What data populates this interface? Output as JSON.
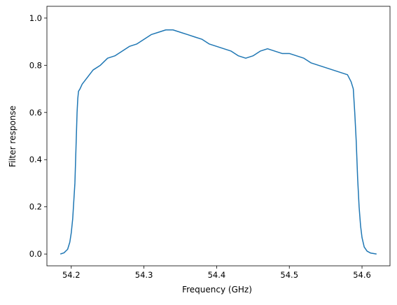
{
  "chart_data": {
    "type": "line",
    "title": "",
    "xlabel": "Frequency (GHz)",
    "ylabel": "Filter response",
    "xlim": [
      54.1665,
      54.6385
    ],
    "ylim": [
      -0.05,
      1.05
    ],
    "x_ticks": [
      54.2,
      54.3,
      54.4,
      54.5,
      54.6
    ],
    "x_tick_labels": [
      "54.2",
      "54.3",
      "54.4",
      "54.5",
      "54.6"
    ],
    "y_ticks": [
      0.0,
      0.2,
      0.4,
      0.6,
      0.8,
      1.0
    ],
    "y_tick_labels": [
      "0.0",
      "0.2",
      "0.4",
      "0.6",
      "0.8",
      "1.0"
    ],
    "grid": false,
    "legend": "none",
    "series": [
      {
        "color": "#1f77b4",
        "x": [
          54.185,
          54.19,
          54.195,
          54.198,
          54.2,
          54.202,
          54.204,
          54.205,
          54.206,
          54.207,
          54.208,
          54.209,
          54.21,
          54.212,
          54.215,
          54.22,
          54.225,
          54.23,
          54.24,
          54.25,
          54.26,
          54.27,
          54.28,
          54.29,
          54.3,
          54.31,
          54.32,
          54.33,
          54.34,
          54.35,
          54.36,
          54.37,
          54.38,
          54.39,
          54.4,
          54.41,
          54.42,
          54.43,
          54.44,
          54.45,
          54.46,
          54.47,
          54.48,
          54.49,
          54.5,
          54.51,
          54.52,
          54.53,
          54.54,
          54.55,
          54.56,
          54.57,
          54.58,
          54.585,
          54.588,
          54.59,
          54.592,
          54.594,
          54.596,
          54.598,
          54.6,
          54.603,
          54.607,
          54.612,
          54.62
        ],
        "y": [
          0.0,
          0.005,
          0.02,
          0.05,
          0.09,
          0.15,
          0.25,
          0.3,
          0.4,
          0.5,
          0.6,
          0.66,
          0.69,
          0.7,
          0.72,
          0.74,
          0.76,
          0.78,
          0.8,
          0.83,
          0.84,
          0.86,
          0.88,
          0.89,
          0.91,
          0.93,
          0.94,
          0.95,
          0.95,
          0.94,
          0.93,
          0.92,
          0.91,
          0.89,
          0.88,
          0.87,
          0.86,
          0.84,
          0.83,
          0.84,
          0.86,
          0.87,
          0.86,
          0.85,
          0.85,
          0.84,
          0.83,
          0.81,
          0.8,
          0.79,
          0.78,
          0.77,
          0.76,
          0.73,
          0.7,
          0.6,
          0.48,
          0.32,
          0.2,
          0.12,
          0.07,
          0.03,
          0.012,
          0.004,
          0.0
        ]
      }
    ]
  }
}
